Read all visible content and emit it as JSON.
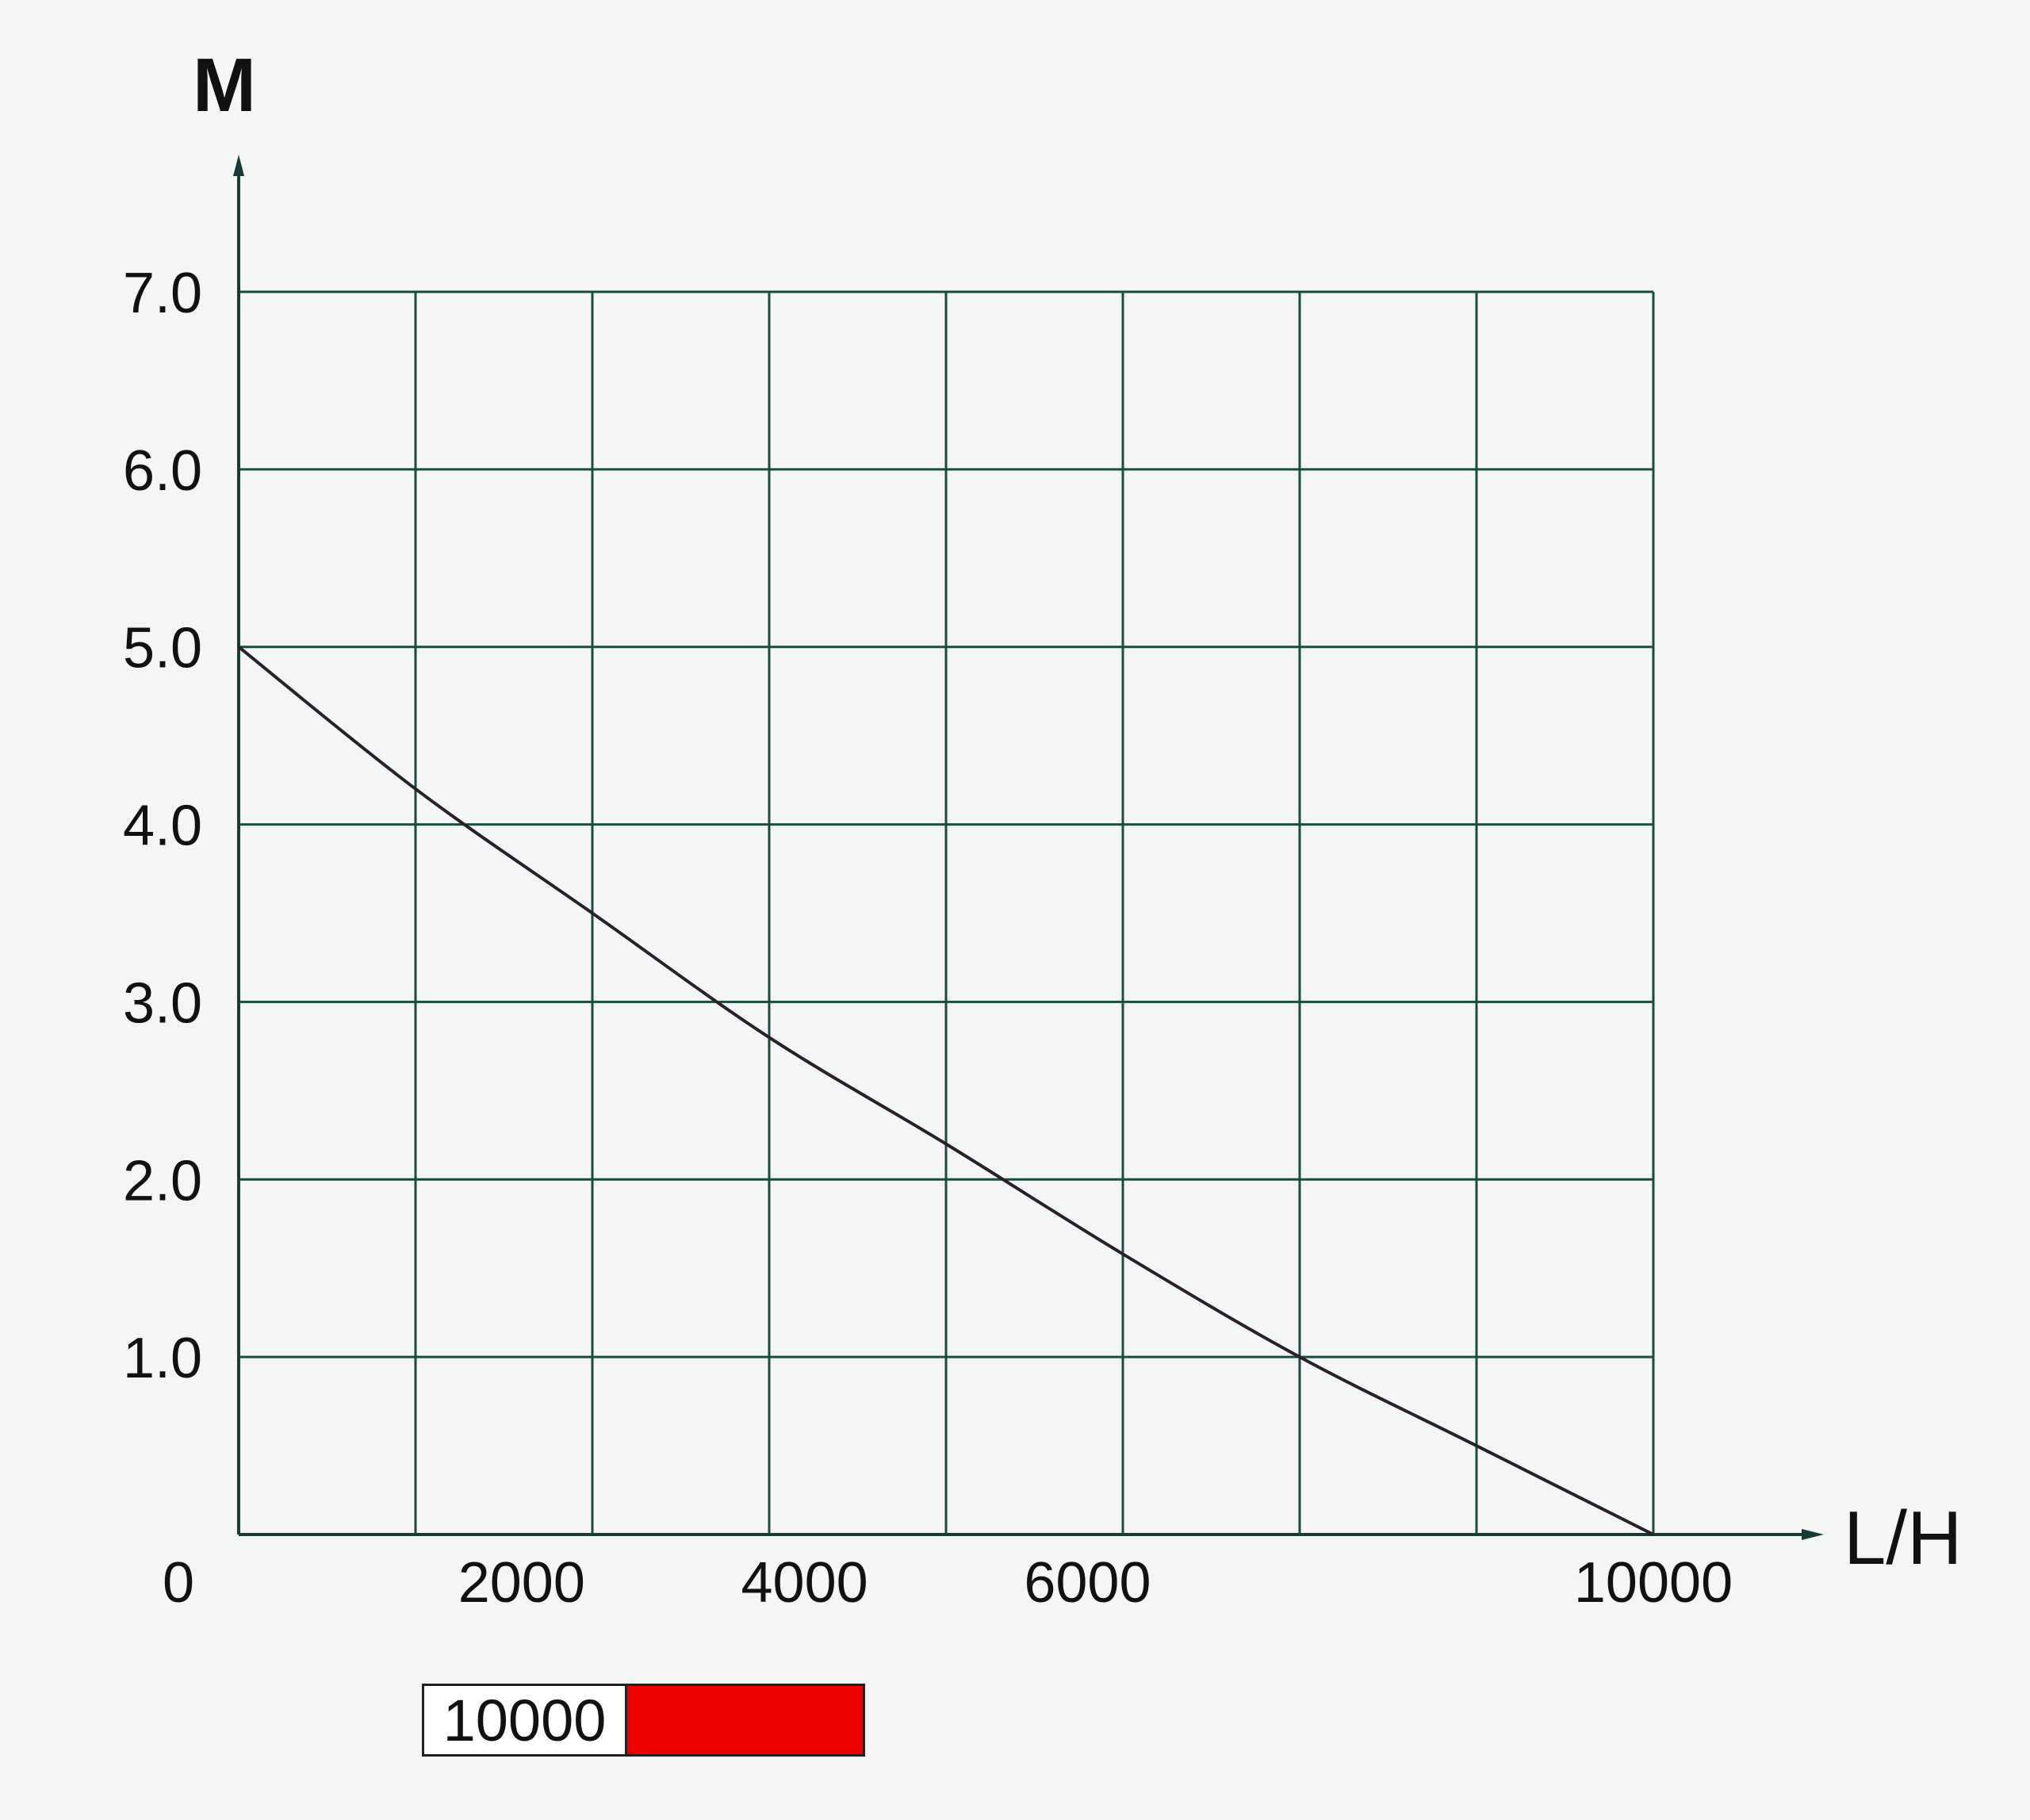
{
  "chart_data": {
    "type": "line",
    "xlabel": "L/H",
    "ylabel": "M",
    "origin_label": "0",
    "xlim": [
      0,
      10000
    ],
    "ylim": [
      0,
      7
    ],
    "x_tick_labels": [
      {
        "value": 2000,
        "label": "2000"
      },
      {
        "value": 4000,
        "label": "4000"
      },
      {
        "value": 6000,
        "label": "6000"
      },
      {
        "value": 10000,
        "label": "10000"
      }
    ],
    "y_tick_labels": [
      {
        "value": 1,
        "label": "1.0"
      },
      {
        "value": 2,
        "label": "2.0"
      },
      {
        "value": 3,
        "label": "3.0"
      },
      {
        "value": 4,
        "label": "4.0"
      },
      {
        "value": 5,
        "label": "5.0"
      },
      {
        "value": 6,
        "label": "6.0"
      },
      {
        "value": 7,
        "label": "7.0"
      }
    ],
    "grid": true,
    "grid_columns": 8,
    "series": [
      {
        "name": "10000",
        "x": [
          0,
          1250,
          2500,
          3750,
          5000,
          6250,
          7500,
          8750,
          10000
        ],
        "values": [
          5.0,
          4.2,
          3.5,
          2.8,
          2.2,
          1.58,
          1.0,
          0.5,
          0.0
        ]
      }
    ]
  },
  "legend": {
    "label": "10000",
    "color": "#ee0000"
  },
  "colors": {
    "grid": "#1a4a40",
    "curve": "#2a1f2a",
    "axis": "#1a3a35",
    "background": "#f3f6f5"
  }
}
